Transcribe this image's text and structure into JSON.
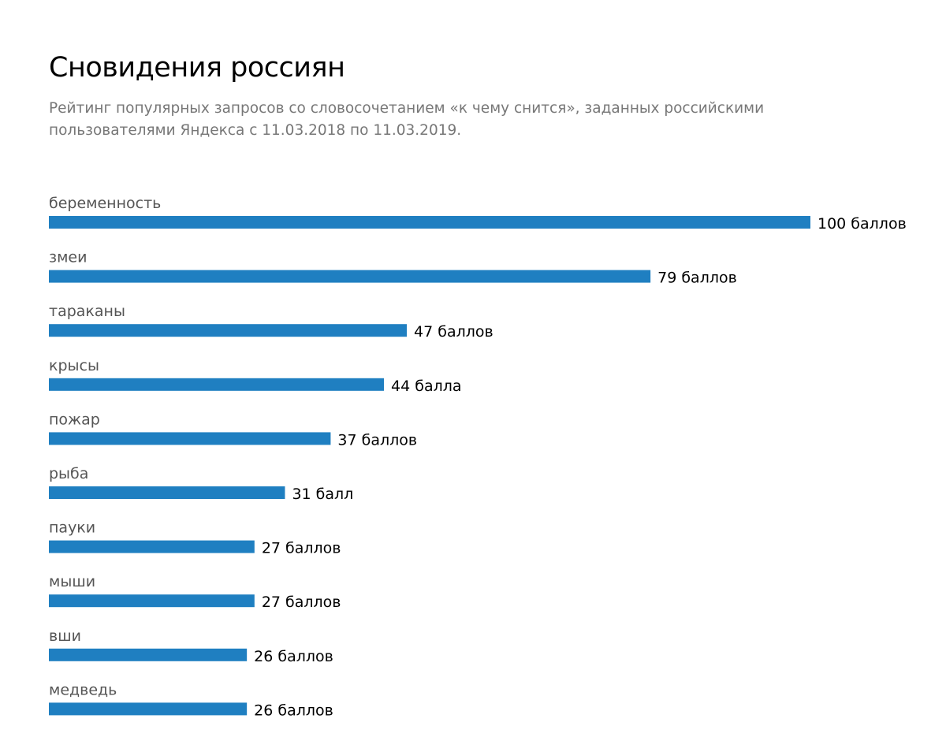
{
  "header": {
    "title": "Сновидения россиян",
    "subtitle_line1": "Рейтинг популярных запросов со словосочетанием «к чему снится», заданных российскими",
    "subtitle_line2": "пользователями Яндекса с 11.03.2018 по 11.03.2019."
  },
  "colors": {
    "bar": "#1f7fc1",
    "category_text": "#555555",
    "value_text": "#000000"
  },
  "chart_data": {
    "type": "bar",
    "orientation": "horizontal",
    "title": "Сновидения россиян",
    "xlim": [
      0,
      100
    ],
    "grid": false,
    "categories": [
      "беременность",
      "змеи",
      "тараканы",
      "крысы",
      "пожар",
      "рыба",
      "пауки",
      "мыши",
      "вши",
      "медведь"
    ],
    "values": [
      100,
      79,
      47,
      44,
      37,
      31,
      27,
      27,
      26,
      26
    ],
    "value_labels": [
      "100 баллов",
      "79 баллов",
      "47 баллов",
      "44 балла",
      "37 баллов",
      "31 балл",
      "27 баллов",
      "27 баллов",
      "26 баллов",
      "26 баллов"
    ]
  }
}
